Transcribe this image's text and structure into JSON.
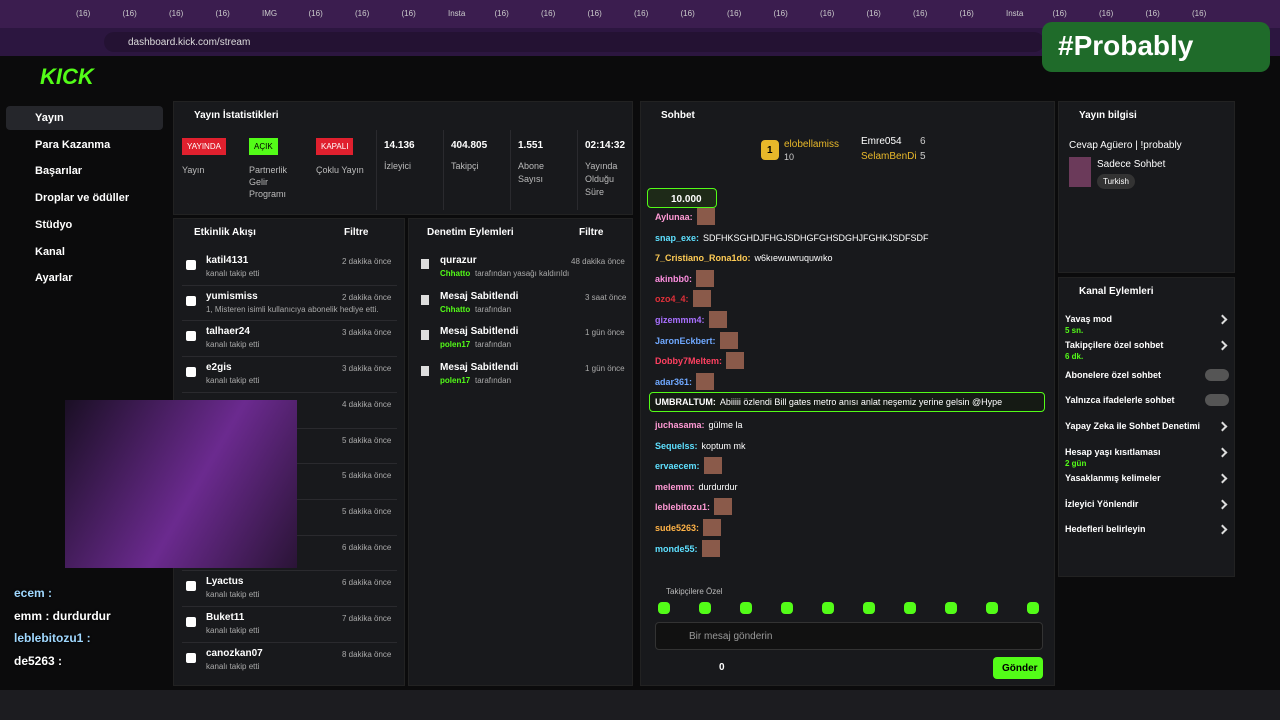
{
  "browser": {
    "tabs": [
      "(16)",
      "(16)",
      "(16)",
      "(16)",
      "IMG",
      "(16)",
      "(16)",
      "(16)",
      "Insta",
      "(16)",
      "(16)",
      "(16)",
      "(16)",
      "(16)",
      "(16)",
      "(16)",
      "(16)",
      "(16)",
      "(16)",
      "(16)",
      "Insta",
      "(16)",
      "(16)",
      "(16)",
      "(16)"
    ],
    "url": "dashboard.kick.com/stream"
  },
  "header": {
    "logo": "KICK",
    "badge": "#Probably"
  },
  "sidebar": {
    "items": [
      "Yayın",
      "Para Kazanma",
      "Başarılar",
      "Droplar ve ödüller",
      "Stüdyo",
      "Kanal",
      "Ayarlar"
    ]
  },
  "stats": {
    "title": "Yayın İstatistikleri",
    "statuses": [
      {
        "badge": "YAYINDA",
        "label": "Yayın",
        "color": "#e0202e"
      },
      {
        "badge": "AÇIK",
        "label": "Partnerlik Gelir Programı",
        "color": "#53fc18"
      },
      {
        "badge": "KAPALI",
        "label": "Çoklu Yayın",
        "color": "#e0202e"
      }
    ],
    "metrics": [
      {
        "value": "14.136",
        "label": "İzleyici"
      },
      {
        "value": "404.805",
        "label": "Takipçi"
      },
      {
        "value": "1.551",
        "label": "Abone Sayısı"
      },
      {
        "value": "02:14:32",
        "label": "Yayında Olduğu Süre"
      }
    ]
  },
  "activity": {
    "title": "Etkinlik Akışı",
    "filter": "Filtre",
    "items": [
      {
        "name": "katil4131",
        "detail": "kanalı takip etti",
        "time": "2 dakika önce"
      },
      {
        "name": "yumismiss",
        "detail": "1, Misteren isimli kullanıcıya abonelik hediye etti.",
        "time": "2 dakika önce"
      },
      {
        "name": "talhaer24",
        "detail": "kanalı takip etti",
        "time": "3 dakika önce"
      },
      {
        "name": "e2gis",
        "detail": "kanalı takip etti",
        "time": "3 dakika önce"
      },
      {
        "time": "4 dakika önce"
      },
      {
        "time": "5 dakika önce"
      },
      {
        "time": "5 dakika önce"
      },
      {
        "time": "5 dakika önce"
      },
      {
        "time": "6 dakika önce"
      },
      {
        "name": "Lyactus",
        "detail": "kanalı takip etti",
        "time": "6 dakika önce"
      },
      {
        "name": "Buket11",
        "detail": "kanalı takip etti",
        "time": "7 dakika önce"
      },
      {
        "name": "canozkan07",
        "detail": "kanalı takip etti",
        "time": "8 dakika önce"
      }
    ]
  },
  "moderation": {
    "title": "Denetim Eylemleri",
    "filter": "Filtre",
    "items": [
      {
        "name": "qurazur",
        "actor": "Chhatto",
        "detail": "tarafından yasağı kaldırıldı",
        "time": "48 dakika önce"
      },
      {
        "name": "Mesaj Sabitlendi",
        "actor": "Chhatto",
        "detail": "tarafından",
        "time": "3 saat önce"
      },
      {
        "name": "Mesaj Sabitlendi",
        "actor": "polen17",
        "detail": "tarafından",
        "time": "1 gün önce"
      },
      {
        "name": "Mesaj Sabitlendi",
        "actor": "polen17",
        "detail": "tarafından",
        "time": "1 gün önce"
      }
    ]
  },
  "chat": {
    "title": "Sohbet",
    "leaders": [
      {
        "rank": "1",
        "name": "elobellamiss",
        "count": "10"
      },
      {
        "name": "Emre054",
        "count": "6"
      },
      {
        "name": "SelamBenDi",
        "count": "5"
      }
    ],
    "pinned": "10.000",
    "messages": [
      {
        "user": "Aylunaa:",
        "color": "#ff9ad5"
      },
      {
        "user": "snap_exe:",
        "color": "#5ee0ff",
        "text": "SDFHKSGHDJFHGJSDHGFGHSDGHJFGHKJSDFSDF"
      },
      {
        "user": "7_Cristiano_Rona1do:",
        "color": "#ffcc55",
        "text": "w6kıewuwruquwıko"
      },
      {
        "user": "akinbb0:",
        "color": "#ff8fe0"
      },
      {
        "user": "ozo4_4:",
        "color": "#e0303a"
      },
      {
        "user": "gizemmm4:",
        "color": "#a970ff"
      },
      {
        "user": "JaronEckbert:",
        "color": "#6fa8ff"
      },
      {
        "user": "Dobby7Meltem:",
        "color": "#ff4060"
      },
      {
        "user": "adar361:",
        "color": "#6fa8ff"
      },
      {
        "user": "UMBRALTUM:",
        "color": "#ffffff",
        "text": "Abiiiii özlendi Bill gates metro anısı anlat neşemiz yerine gelsin @Hype",
        "highlight": true
      },
      {
        "user": "juchasama:",
        "color": "#ff9ad5",
        "text": "gülme la"
      },
      {
        "user": "Sequelss:",
        "color": "#5ee0ff",
        "text": "koptum mk"
      },
      {
        "user": "ervaecem:",
        "color": "#5ee0ff"
      },
      {
        "user": "melemm:",
        "color": "#ff9ad5",
        "text": "durdurdur"
      },
      {
        "user": "leblebitozu1:",
        "color": "#ff9ad5"
      },
      {
        "user": "sude5263:",
        "color": "#ffb347"
      },
      {
        "user": "monde55:",
        "color": "#5ee0ff"
      }
    ],
    "followers_only": "Takipçilere Özel",
    "placeholder": "Bir mesaj gönderin",
    "points": "0",
    "send": "Gönder"
  },
  "stream_info": {
    "title": "Yayın bilgisi",
    "stream_title": "Cevap Agüero | !probably",
    "category": "Sadece Sohbet",
    "tag": "Turkish"
  },
  "channel_actions": {
    "title": "Kanal Eylemleri",
    "items": [
      {
        "label": "Yavaş mod",
        "detail": "5 sn."
      },
      {
        "label": "Takipçilere özel sohbet",
        "detail": "6 dk."
      },
      {
        "label": "Abonelere özel sohbet",
        "toggle": false
      },
      {
        "label": "Yalnızca ifadelerle sohbet",
        "toggle": false
      },
      {
        "label": "Yapay Zeka ile Sohbet Denetimi"
      },
      {
        "label": "Hesap yaşı kısıtlaması",
        "detail": "2 gün"
      },
      {
        "label": "Yasaklanmış kelimeler"
      },
      {
        "label": "İzleyici Yönlendir"
      },
      {
        "label": "Hedefleri belirleyin"
      }
    ]
  },
  "overlay_chat": [
    "ecem :",
    "emm : durdurdur",
    "leblebitozu1 :",
    "de5263 :"
  ]
}
